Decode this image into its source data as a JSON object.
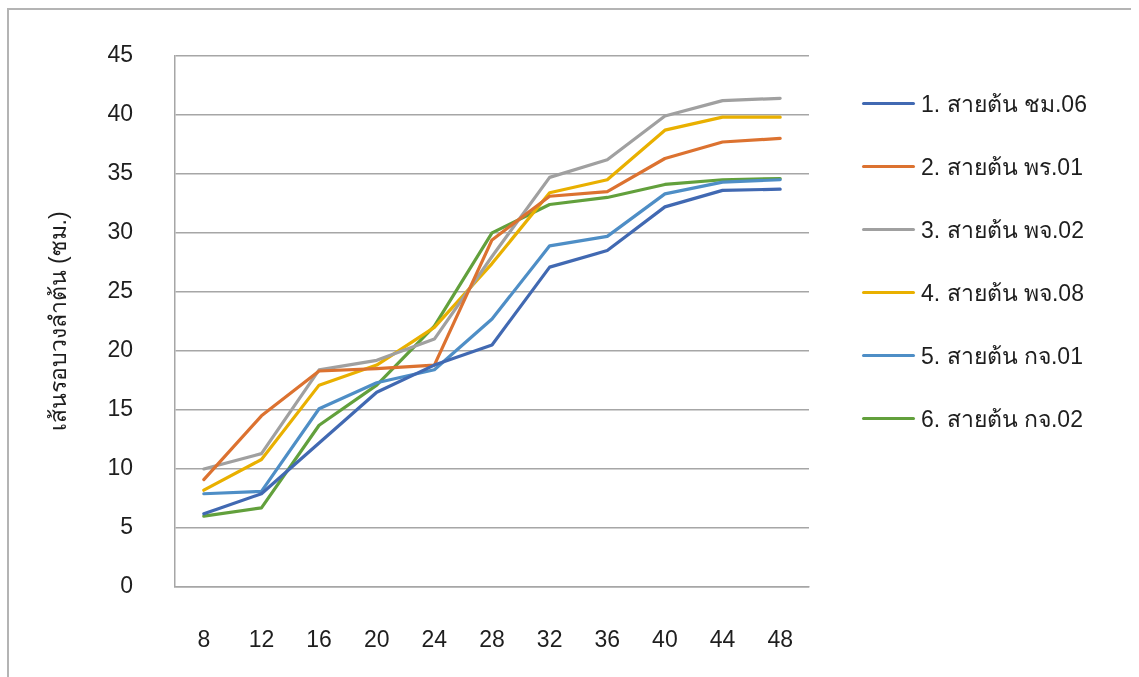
{
  "chart_data": {
    "type": "line",
    "ylabel": "เส้นรอบวงลำต้น (ซม.)",
    "categories": [
      "8",
      "12",
      "16",
      "20",
      "24",
      "28",
      "32",
      "36",
      "40",
      "44",
      "48"
    ],
    "ylim": [
      0,
      45
    ],
    "yticks": [
      0,
      5,
      10,
      15,
      20,
      25,
      30,
      35,
      40,
      45
    ],
    "grid": "y",
    "legend": "right",
    "marker": "none",
    "series": [
      {
        "name": "1. สายต้น ชม.06",
        "color": "#4169b2",
        "values": [
          6.2,
          7.9,
          12.2,
          16.5,
          18.8,
          20.5,
          27.1,
          28.5,
          32.2,
          33.6,
          33.7
        ]
      },
      {
        "name": "2. สายต้น พร.01",
        "color": "#dc7230",
        "values": [
          9.1,
          14.5,
          18.3,
          18.5,
          18.8,
          29.4,
          33.1,
          33.5,
          36.3,
          37.7,
          38.0
        ]
      },
      {
        "name": "3. สายต้น พจ.02",
        "color": "#a0a0a0",
        "values": [
          10.0,
          11.3,
          18.4,
          19.2,
          21.0,
          28.0,
          34.7,
          36.2,
          39.9,
          41.2,
          41.4
        ]
      },
      {
        "name": "4. สายต้น พจ.08",
        "color": "#e9b000",
        "values": [
          8.2,
          10.8,
          17.1,
          18.8,
          22.0,
          27.4,
          33.4,
          34.5,
          38.7,
          39.8,
          39.8
        ]
      },
      {
        "name": "5. สายต้น กจ.01",
        "color": "#4e8ec6",
        "values": [
          7.9,
          8.1,
          15.1,
          17.3,
          18.4,
          22.7,
          28.9,
          29.7,
          33.3,
          34.3,
          34.5
        ]
      },
      {
        "name": "6. สายต้น กจ.02",
        "color": "#62a03c",
        "values": [
          6.0,
          6.7,
          13.7,
          17.1,
          22.1,
          30.0,
          32.4,
          33.0,
          34.1,
          34.5,
          34.6
        ]
      }
    ]
  }
}
